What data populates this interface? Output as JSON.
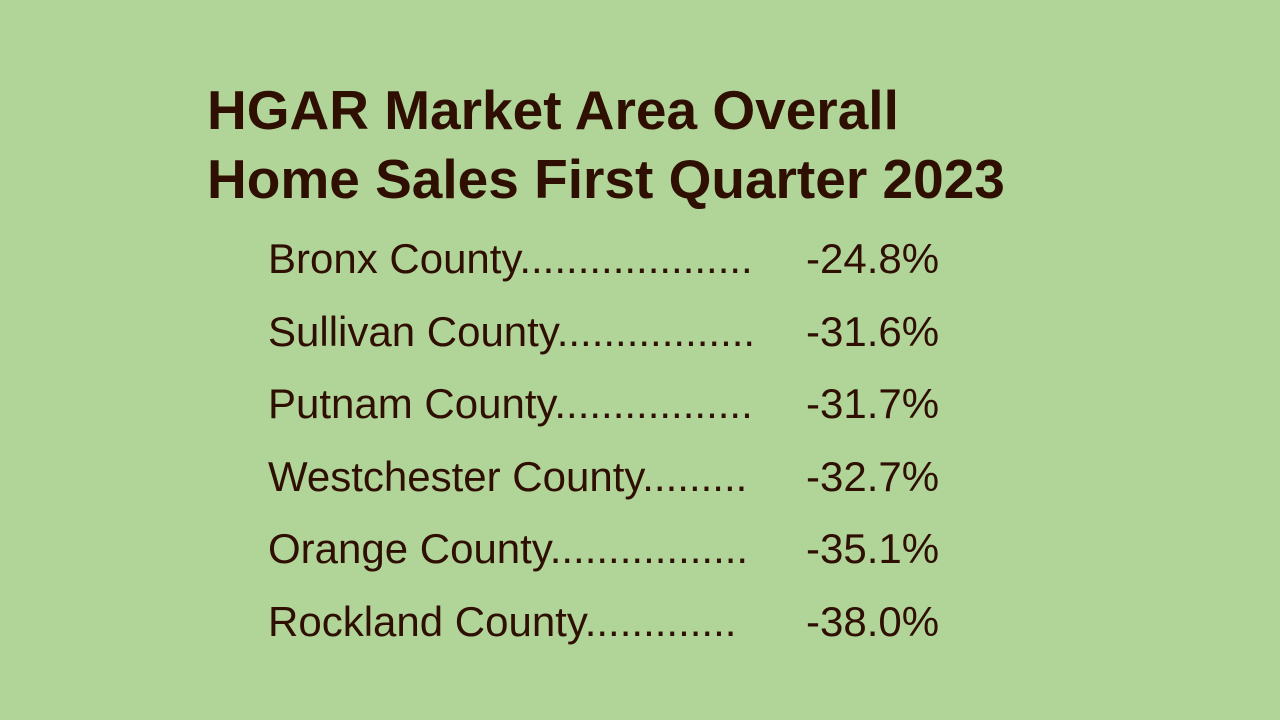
{
  "theme": {
    "background": "#b1d498",
    "text": "#2e0f02"
  },
  "slide": {
    "title_lines": [
      "HGAR Market Area Overall",
      "Home Sales First Quarter 2023"
    ],
    "rows": [
      {
        "label": "Bronx County....................",
        "value": "-24.8%"
      },
      {
        "label": "Sullivan County.................",
        "value": "-31.6%"
      },
      {
        "label": "Putnam County.................",
        "value": "-31.7%"
      },
      {
        "label": "Westchester County.........",
        "value": "-32.7%"
      },
      {
        "label": "Orange County.................",
        "value": "-35.1%"
      },
      {
        "label": "Rockland County.............",
        "value": "-38.0%"
      }
    ]
  }
}
